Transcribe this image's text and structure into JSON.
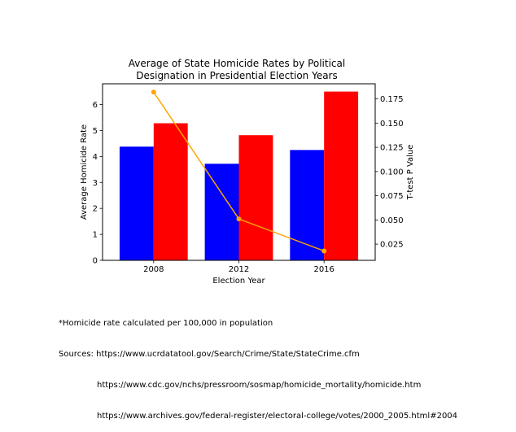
{
  "chart_data": {
    "type": "bar",
    "title": "Average of State Homicide Rates by Political\nDesignation in Presidential Election Years",
    "xlabel": "Election Year",
    "ylabel": "Average Homicide Rate",
    "y2label": "T-test P Value",
    "categories": [
      "2008",
      "2012",
      "2016"
    ],
    "ylim": [
      0,
      6.8
    ],
    "y2lim": [
      0.0083,
      0.1906
    ],
    "yticks": [
      "0",
      "1",
      "2",
      "3",
      "4",
      "5",
      "6"
    ],
    "y2ticks": [
      "0.025",
      "0.050",
      "0.075",
      "0.100",
      "0.125",
      "0.150",
      "0.175"
    ],
    "series": [
      {
        "color": "#0000ff",
        "values": [
          4.38,
          3.72,
          4.25
        ]
      },
      {
        "color": "#ff0000",
        "values": [
          5.28,
          4.82,
          6.5
        ]
      }
    ],
    "line_series": {
      "color": "#ffa500",
      "axis": "right",
      "values": [
        0.182,
        0.051,
        0.018
      ]
    },
    "grid": false
  },
  "notes": {
    "line1": "*Homicide rate calculated per 100,000 in population",
    "line2": "Sources: https://www.ucrdatatool.gov/Search/Crime/State/StateCrime.cfm",
    "line3": "https://www.cdc.gov/nchs/pressroom/sosmap/homicide_mortality/homicide.htm",
    "line4": "https://www.archives.gov/federal-register/electoral-college/votes/2000_2005.html#2004"
  }
}
